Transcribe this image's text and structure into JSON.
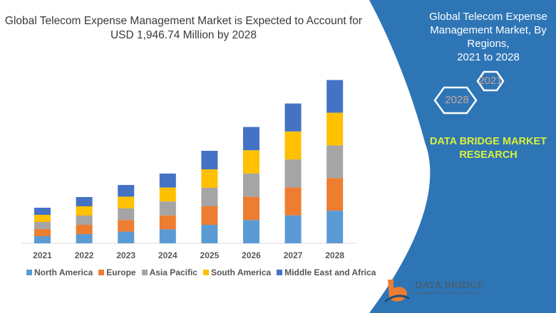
{
  "header": {
    "title_line1": "Global Telecom Expense Management Market is Expected to Account for",
    "title_line2": "USD 1,946.74 Million by 2028"
  },
  "side_panel": {
    "title_line1": "Global Telecom Expense",
    "title_line2": "Management Market, By Regions,",
    "title_line3": "2021 to 2028",
    "hex_start": "2021",
    "hex_end": "2028",
    "brand_line1": "DATA BRIDGE MARKET",
    "brand_line2": "RESEARCH",
    "logo_text": "DATA BRIDGE",
    "logo_subtext": "MARKET RESEARCH",
    "panel_color": "#2e75b6",
    "brand_color": "#d9f03a"
  },
  "chart_data": {
    "type": "bar",
    "stacked": true,
    "title": "",
    "xlabel": "",
    "ylabel": "",
    "grid": false,
    "legend_position": "bottom",
    "categories": [
      "2021",
      "2022",
      "2023",
      "2024",
      "2025",
      "2026",
      "2027",
      "2028"
    ],
    "series": [
      {
        "name": "North America",
        "color": "#5b9bd5",
        "values": [
          10,
          13,
          16.4,
          19.6,
          26,
          32.7,
          39.3,
          45.9
        ]
      },
      {
        "name": "Europe",
        "color": "#ed7d31",
        "values": [
          10,
          13,
          16.4,
          19.6,
          26,
          32.7,
          39.3,
          45.9
        ]
      },
      {
        "name": "Asia Pacific",
        "color": "#a5a5a5",
        "values": [
          10,
          13,
          16.4,
          19.6,
          26,
          32.7,
          39.3,
          45.9
        ]
      },
      {
        "name": "South America",
        "color": "#ffc000",
        "values": [
          10,
          13,
          16.4,
          19.6,
          26,
          32.7,
          39.3,
          45.9
        ]
      },
      {
        "name": "Middle East and Africa",
        "color": "#4472c4",
        "values": [
          10,
          13,
          16.4,
          19.6,
          26,
          32.7,
          39.3,
          45.9
        ]
      }
    ]
  }
}
